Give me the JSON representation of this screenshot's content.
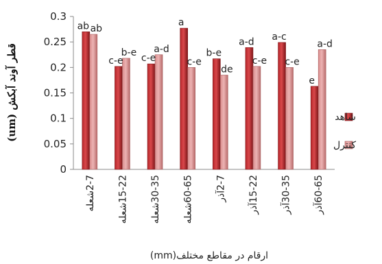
{
  "chart_data": {
    "type": "bar",
    "ylabel": "قطر آوند آبکش (um)",
    "xlabel": "ارقام در مقاطع مختلف(mm)",
    "ylim": [
      0,
      0.3
    ],
    "yticks": [
      "0",
      "0.05",
      "0.1",
      "0.15",
      "0.2",
      "0.25",
      "0.3"
    ],
    "grid": false,
    "legend_position": "right",
    "categories": [
      "2-7شعله",
      "15-22شعله",
      "30-35شعله",
      "60-65شعله",
      "2-7آذر",
      "15-22آذر",
      "30-35آذر",
      "60-65آذر"
    ],
    "series": [
      {
        "name": "شاهد",
        "color": "#b5262a",
        "values": [
          0.27,
          0.202,
          0.207,
          0.277,
          0.217,
          0.239,
          0.249,
          0.163
        ],
        "labels": [
          "ab",
          "c-e",
          "c-e",
          "a",
          "b-e",
          "a-d",
          "a-c",
          "e"
        ]
      },
      {
        "name": "کنترل",
        "color": "#d98c8c",
        "values": [
          0.265,
          0.218,
          0.225,
          0.2,
          0.185,
          0.202,
          0.2,
          0.235
        ],
        "labels": [
          "ab",
          "b-e",
          "a-d",
          "c-e",
          "de",
          "c-e",
          "c-e",
          "a-d"
        ]
      }
    ]
  }
}
